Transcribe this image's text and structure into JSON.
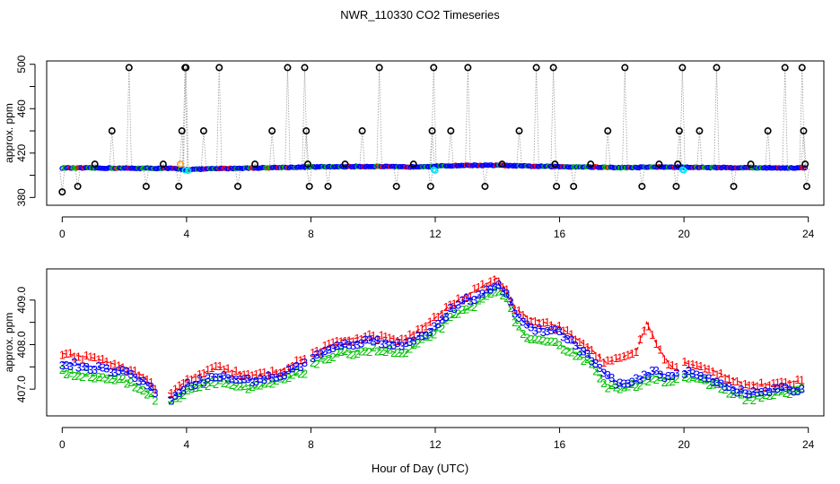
{
  "title": "NWR_110330  CO2 Timeseries",
  "xlabel": "Hour of Day (UTC)",
  "colors": {
    "series1": "#ff0000",
    "series2": "#00c000",
    "series3": "#0000ff",
    "cyan": "#00e5ff",
    "orange": "#ff9900",
    "spike": "#000000"
  },
  "chart_data": [
    {
      "type": "scatter",
      "name": "top",
      "ylabel": "approx. ppm",
      "xlim": [
        -0.5,
        24.5
      ],
      "ylim": [
        373,
        503
      ],
      "xticks": [
        0,
        4,
        8,
        12,
        16,
        20,
        24
      ],
      "xtick_labels": [
        "0",
        "4",
        "8",
        "12",
        "16",
        "20",
        "24"
      ],
      "yticks": [
        380,
        420,
        460,
        500
      ],
      "ytick_labels": [
        "380",
        "420",
        "460",
        "500"
      ],
      "baseline": [
        [
          0,
          406.6
        ],
        [
          2,
          406.4
        ],
        [
          3.5,
          406.2
        ],
        [
          4,
          405.2
        ],
        [
          5,
          406.0
        ],
        [
          6,
          406.5
        ],
        [
          8,
          407.5
        ],
        [
          9,
          407.8
        ],
        [
          10,
          408.0
        ],
        [
          11,
          407.5
        ],
        [
          12,
          408.2
        ],
        [
          13,
          409.0
        ],
        [
          14,
          409.0
        ],
        [
          15,
          408.2
        ],
        [
          16,
          407.8
        ],
        [
          17,
          407.5
        ],
        [
          18,
          406.8
        ],
        [
          19,
          407.5
        ],
        [
          20,
          407.2
        ],
        [
          21,
          407.0
        ],
        [
          22,
          406.8
        ],
        [
          23.9,
          406.6
        ]
      ],
      "spikes": [
        [
          0,
          385
        ],
        [
          0.5,
          390
        ],
        [
          1.05,
          410
        ],
        [
          1.6,
          440
        ],
        [
          2.15,
          497
        ],
        [
          2.7,
          390
        ],
        [
          3.25,
          410
        ],
        [
          3.75,
          390
        ],
        [
          3.85,
          440
        ],
        [
          3.95,
          497
        ],
        [
          3.98,
          497
        ],
        [
          4.55,
          440
        ],
        [
          5.05,
          497
        ],
        [
          5.65,
          390
        ],
        [
          6.2,
          410
        ],
        [
          6.75,
          440
        ],
        [
          7.25,
          497
        ],
        [
          7.8,
          497
        ],
        [
          7.85,
          440
        ],
        [
          7.9,
          410
        ],
        [
          7.95,
          390
        ],
        [
          8.55,
          390
        ],
        [
          9.1,
          410
        ],
        [
          9.65,
          440
        ],
        [
          10.2,
          497
        ],
        [
          10.75,
          390
        ],
        [
          11.3,
          410
        ],
        [
          11.85,
          390
        ],
        [
          11.9,
          440
        ],
        [
          11.95,
          497
        ],
        [
          12.5,
          440
        ],
        [
          13.05,
          497
        ],
        [
          13.6,
          390
        ],
        [
          14.15,
          410
        ],
        [
          14.7,
          440
        ],
        [
          15.25,
          497
        ],
        [
          15.8,
          497
        ],
        [
          15.85,
          410
        ],
        [
          15.9,
          390
        ],
        [
          16.45,
          390
        ],
        [
          17.0,
          410
        ],
        [
          17.55,
          440
        ],
        [
          18.1,
          497
        ],
        [
          18.65,
          390
        ],
        [
          19.2,
          410
        ],
        [
          19.75,
          390
        ],
        [
          19.8,
          410
        ],
        [
          19.85,
          440
        ],
        [
          19.95,
          497
        ],
        [
          20.5,
          440
        ],
        [
          21.05,
          497
        ],
        [
          21.6,
          390
        ],
        [
          22.15,
          410
        ],
        [
          22.7,
          440
        ],
        [
          23.25,
          497
        ],
        [
          23.8,
          497
        ],
        [
          23.85,
          440
        ],
        [
          23.9,
          410
        ],
        [
          23.95,
          390
        ]
      ]
    },
    {
      "type": "line",
      "name": "bottom",
      "ylabel": "approx. ppm",
      "xlim": [
        -0.5,
        24.5
      ],
      "ylim": [
        406.4,
        409.7
      ],
      "xticks": [
        0,
        4,
        8,
        12,
        16,
        20,
        24
      ],
      "xtick_labels": [
        "0",
        "4",
        "8",
        "12",
        "16",
        "20",
        "24"
      ],
      "yticks": [
        407.0,
        408.0,
        409.0
      ],
      "ytick_labels": [
        "407.0",
        "408.0",
        "409.0"
      ],
      "gaps": [
        [
          3.0,
          3.4
        ],
        [
          7.8,
          8.0
        ],
        [
          19.8,
          20.0
        ]
      ],
      "series": [
        {
          "name": "1",
          "marker": "1",
          "offset": 0.08,
          "points": [
            [
              0,
              407.8
            ],
            [
              1,
              407.7
            ],
            [
              2,
              407.5
            ],
            [
              2.6,
              407.3
            ],
            [
              3.0,
              407.0
            ],
            [
              3.5,
              406.9
            ],
            [
              4,
              407.2
            ],
            [
              5,
              407.5
            ],
            [
              6,
              407.3
            ],
            [
              7,
              407.4
            ],
            [
              7.8,
              407.7
            ],
            [
              8,
              407.8
            ],
            [
              9,
              408.1
            ],
            [
              10,
              408.2
            ],
            [
              11,
              408.1
            ],
            [
              12,
              408.6
            ],
            [
              12.5,
              408.9
            ],
            [
              13,
              409.1
            ],
            [
              13.5,
              409.3
            ],
            [
              14,
              409.5
            ],
            [
              14.3,
              409.2
            ],
            [
              14.6,
              408.8
            ],
            [
              15,
              408.6
            ],
            [
              16,
              408.4
            ],
            [
              17,
              407.9
            ],
            [
              17.5,
              407.6
            ],
            [
              18,
              407.7
            ],
            [
              18.5,
              407.9
            ],
            [
              18.8,
              408.5
            ],
            [
              19.2,
              407.9
            ],
            [
              19.6,
              407.5
            ],
            [
              20,
              407.6
            ],
            [
              21,
              407.4
            ],
            [
              22,
              407.1
            ],
            [
              23,
              407.1
            ],
            [
              23.8,
              407.2
            ]
          ]
        },
        {
          "name": "2",
          "marker": "2",
          "offset": -0.1,
          "points": [
            [
              0,
              407.4
            ],
            [
              1,
              407.3
            ],
            [
              2,
              407.2
            ],
            [
              2.6,
              407.0
            ],
            [
              3.0,
              406.8
            ],
            [
              3.5,
              406.7
            ],
            [
              4,
              407.0
            ],
            [
              5,
              407.2
            ],
            [
              6,
              407.0
            ],
            [
              7,
              407.2
            ],
            [
              7.8,
              407.4
            ],
            [
              8,
              407.6
            ],
            [
              9,
              407.8
            ],
            [
              10,
              407.9
            ],
            [
              11,
              407.8
            ],
            [
              12,
              408.3
            ],
            [
              12.5,
              408.6
            ],
            [
              13,
              408.8
            ],
            [
              13.5,
              409.0
            ],
            [
              14,
              409.3
            ],
            [
              14.3,
              409.0
            ],
            [
              14.6,
              408.5
            ],
            [
              15,
              408.1
            ],
            [
              16,
              408.0
            ],
            [
              17,
              407.6
            ],
            [
              17.5,
              407.1
            ],
            [
              18,
              407.0
            ],
            [
              18.5,
              407.1
            ],
            [
              19.0,
              407.3
            ],
            [
              19.5,
              407.2
            ],
            [
              20,
              407.3
            ],
            [
              21,
              407.1
            ],
            [
              22,
              406.8
            ],
            [
              23,
              406.9
            ],
            [
              23.8,
              407.0
            ]
          ]
        },
        {
          "name": "3",
          "marker": "3",
          "offset": 0.0,
          "points": [
            [
              0,
              407.6
            ],
            [
              1,
              407.5
            ],
            [
              2,
              407.4
            ],
            [
              2.6,
              407.2
            ],
            [
              3.0,
              406.9
            ],
            [
              3.5,
              406.8
            ],
            [
              4,
              407.1
            ],
            [
              5,
              407.3
            ],
            [
              6,
              407.2
            ],
            [
              7,
              407.3
            ],
            [
              7.8,
              407.6
            ],
            [
              8,
              407.7
            ],
            [
              9,
              408.0
            ],
            [
              10,
              408.1
            ],
            [
              11,
              408.0
            ],
            [
              12,
              408.4
            ],
            [
              12.5,
              408.8
            ],
            [
              13,
              409.0
            ],
            [
              13.5,
              409.1
            ],
            [
              14,
              409.4
            ],
            [
              14.3,
              409.1
            ],
            [
              14.6,
              408.7
            ],
            [
              15,
              408.4
            ],
            [
              16,
              408.3
            ],
            [
              17,
              407.7
            ],
            [
              17.5,
              407.3
            ],
            [
              18,
              407.1
            ],
            [
              18.5,
              407.2
            ],
            [
              19.0,
              407.4
            ],
            [
              19.5,
              407.3
            ],
            [
              20,
              407.4
            ],
            [
              21,
              407.2
            ],
            [
              22,
              406.9
            ],
            [
              23,
              407.0
            ],
            [
              23.8,
              407.0
            ]
          ]
        }
      ]
    }
  ]
}
